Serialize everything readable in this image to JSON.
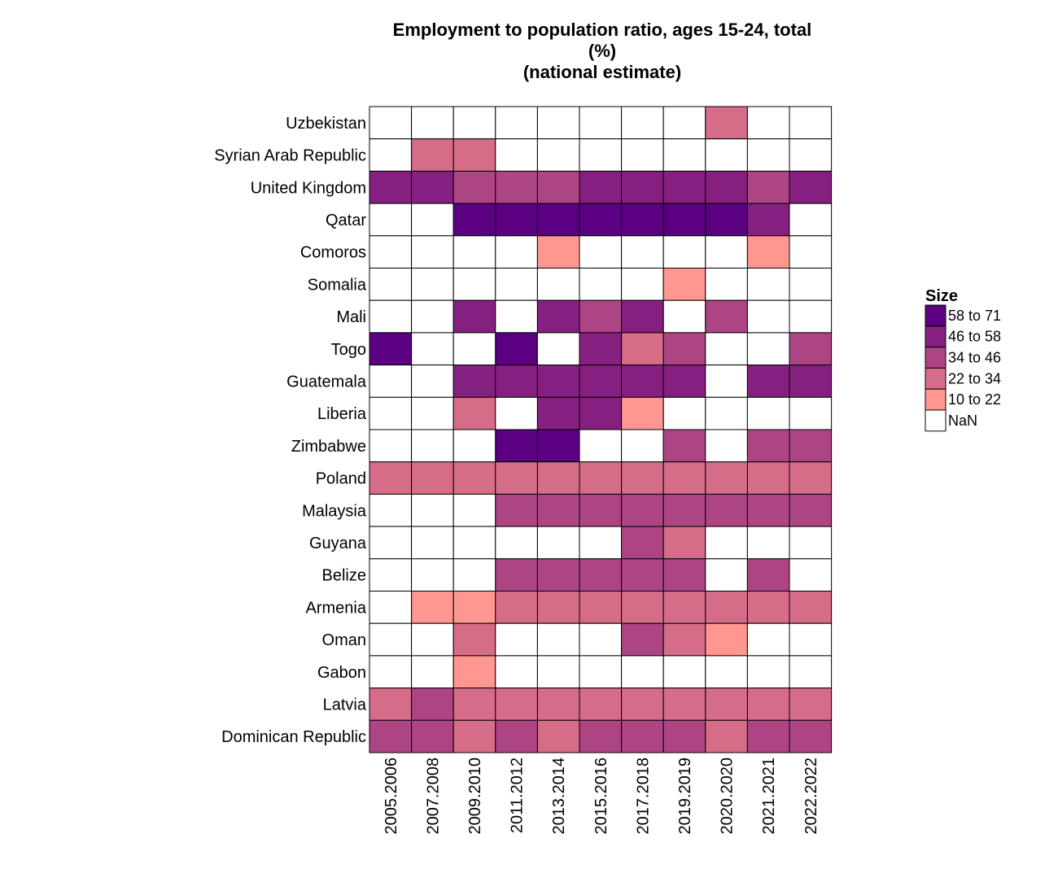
{
  "chart_data": {
    "type": "heatmap",
    "title_lines": [
      "Employment to population ratio, ages 15-24, total",
      "(%)",
      "(national estimate)"
    ],
    "xlabel": "",
    "ylabel": "",
    "columns": [
      "2005.2006",
      "2007.2008",
      "2009.2010",
      "2011.2012",
      "2013.2014",
      "2015.2016",
      "2017.2018",
      "2019.2019",
      "2020.2020",
      "2021.2021",
      "2022.2022"
    ],
    "rows": [
      "Uzbekistan",
      "Syrian Arab Republic",
      "United Kingdom",
      "Qatar",
      "Comoros",
      "Somalia",
      "Mali",
      "Togo",
      "Guatemala",
      "Liberia",
      "Zimbabwe",
      "Poland",
      "Malaysia",
      "Guyana",
      "Belize",
      "Armenia",
      "Oman",
      "Gabon",
      "Latvia",
      "Dominican Republic"
    ],
    "categories_matrix": [
      [
        5,
        5,
        5,
        5,
        5,
        5,
        5,
        5,
        3,
        5,
        5
      ],
      [
        5,
        3,
        3,
        5,
        5,
        5,
        5,
        5,
        5,
        5,
        5
      ],
      [
        1,
        1,
        2,
        2,
        2,
        1,
        1,
        1,
        1,
        2,
        1
      ],
      [
        5,
        5,
        0,
        0,
        0,
        0,
        0,
        0,
        0,
        1,
        5
      ],
      [
        5,
        5,
        5,
        5,
        4,
        5,
        5,
        5,
        5,
        4,
        5
      ],
      [
        5,
        5,
        5,
        5,
        5,
        5,
        5,
        4,
        5,
        5,
        5
      ],
      [
        5,
        5,
        1,
        5,
        1,
        2,
        1,
        5,
        2,
        5,
        5
      ],
      [
        0,
        5,
        5,
        0,
        5,
        1,
        3,
        2,
        5,
        5,
        2
      ],
      [
        5,
        5,
        1,
        1,
        1,
        1,
        1,
        1,
        5,
        1,
        1
      ],
      [
        5,
        5,
        3,
        5,
        1,
        1,
        4,
        5,
        5,
        5,
        5
      ],
      [
        5,
        5,
        5,
        0,
        0,
        5,
        5,
        2,
        5,
        2,
        2
      ],
      [
        3,
        3,
        3,
        3,
        3,
        3,
        3,
        3,
        3,
        3,
        3
      ],
      [
        5,
        5,
        5,
        2,
        2,
        2,
        2,
        2,
        2,
        2,
        2
      ],
      [
        5,
        5,
        5,
        5,
        5,
        5,
        2,
        3,
        5,
        5,
        5
      ],
      [
        5,
        5,
        5,
        2,
        2,
        2,
        2,
        2,
        5,
        2,
        5
      ],
      [
        5,
        4,
        4,
        3,
        3,
        3,
        3,
        3,
        3,
        3,
        3
      ],
      [
        5,
        5,
        3,
        5,
        5,
        5,
        2,
        3,
        4,
        5,
        5
      ],
      [
        5,
        5,
        4,
        5,
        5,
        5,
        5,
        5,
        5,
        5,
        5
      ],
      [
        3,
        2,
        3,
        3,
        3,
        3,
        3,
        3,
        3,
        3,
        3
      ],
      [
        2,
        2,
        3,
        2,
        3,
        2,
        2,
        2,
        3,
        2,
        2
      ]
    ],
    "legend": {
      "title": "Size",
      "placement": "right",
      "bins": [
        {
          "label": "58 to 71",
          "color": "#5a0080"
        },
        {
          "label": "46 to 58",
          "color": "#852080"
        },
        {
          "label": "34 to 46",
          "color": "#ad4585"
        },
        {
          "label": "22 to 34",
          "color": "#d66d88"
        },
        {
          "label": "10 to 22",
          "color": "#ff9690"
        },
        {
          "label": "NaN",
          "color": "#ffffff"
        }
      ]
    },
    "grid": true
  }
}
